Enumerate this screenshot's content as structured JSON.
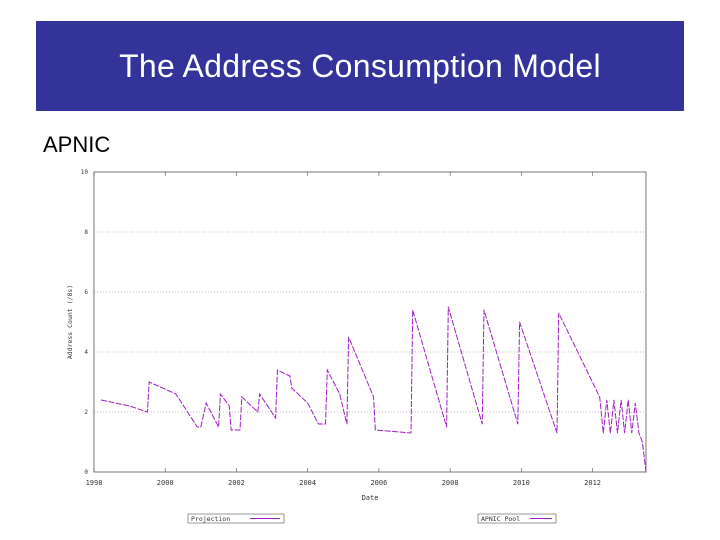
{
  "slide": {
    "title": "The Address Consumption Model",
    "subtitle": "APNIC"
  },
  "colors": {
    "title_bar": "#333399",
    "series": "#a020c0"
  },
  "chart_data": {
    "type": "line",
    "title": "",
    "xlabel": "Date",
    "ylabel": "Address Count (/8s)",
    "xlim": [
      1998,
      2013.5
    ],
    "ylim": [
      0,
      10
    ],
    "x_ticks": [
      1998,
      2000,
      2002,
      2004,
      2006,
      2008,
      2010,
      2012
    ],
    "x_tick_labels": [
      "1998",
      "2000",
      "2002",
      "2004",
      "2006",
      "2008",
      "2010",
      "2012"
    ],
    "y_ticks": [
      0,
      2,
      4,
      6,
      8,
      10
    ],
    "y_tick_labels": [
      "0",
      "2",
      "4",
      "6",
      "8",
      "10"
    ],
    "grid": true,
    "legend": [
      "Projection",
      "APNIC Pool"
    ],
    "series": [
      {
        "name": "APNIC Pool",
        "x": [
          1998.2,
          1999.0,
          1999.5,
          1999.55,
          2000.3,
          2000.9,
          2001.0,
          2001.15,
          2001.5,
          2001.55,
          2001.8,
          2001.85,
          2002.1,
          2002.15,
          2002.6,
          2002.65,
          2003.1,
          2003.15,
          2003.5,
          2003.55,
          2004.0,
          2004.3,
          2004.5,
          2004.55,
          2004.9,
          2005.0,
          2005.1,
          2005.15,
          2005.85,
          2005.9,
          2006.9,
          2006.95,
          2007.9,
          2007.95,
          2008.9,
          2008.95,
          2009.9,
          2009.95,
          2011.0,
          2011.05,
          2012.2,
          2012.3,
          2012.4,
          2012.5,
          2012.6,
          2012.7,
          2012.8,
          2012.9,
          2013.0,
          2013.1,
          2013.2,
          2013.3,
          2013.4,
          2013.5
        ],
        "y": [
          2.4,
          2.2,
          2.0,
          3.0,
          2.6,
          1.5,
          1.5,
          2.3,
          1.5,
          2.6,
          2.2,
          1.4,
          1.4,
          2.5,
          2.0,
          2.6,
          1.8,
          3.4,
          3.2,
          2.8,
          2.3,
          1.6,
          1.6,
          3.4,
          2.6,
          2.1,
          1.6,
          4.5,
          2.5,
          1.4,
          1.3,
          5.4,
          1.5,
          5.5,
          1.6,
          5.4,
          1.6,
          5.0,
          1.3,
          5.3,
          2.5,
          1.3,
          2.4,
          1.3,
          2.4,
          1.3,
          2.4,
          1.3,
          2.4,
          1.3,
          2.3,
          1.3,
          1.0,
          0.0
        ]
      },
      {
        "name": "Projection",
        "x": [],
        "y": []
      }
    ]
  }
}
